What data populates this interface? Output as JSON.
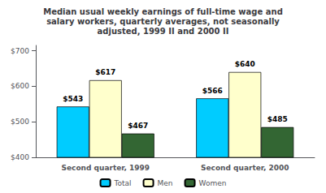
{
  "chart_data": {
    "type": "bar",
    "title": "Median usual weekly earnings of full-time wage and\nsalary workers, quarterly averages, not seasonally\nadjusted, 1999 II and 2000 II",
    "categories": [
      "Second quarter, 1999",
      "Second quarter, 2000"
    ],
    "series": [
      {
        "name": "Total",
        "color": "#00CCFF",
        "values": [
          543,
          566
        ],
        "value_labels": [
          "$543",
          "$566"
        ]
      },
      {
        "name": "Men",
        "color": "#FFFFCC",
        "values": [
          617,
          640
        ],
        "value_labels": [
          "$617",
          "$640"
        ]
      },
      {
        "name": "Women",
        "color": "#336633",
        "values": [
          467,
          485
        ],
        "value_labels": [
          "$467",
          "$485"
        ]
      }
    ],
    "ylim": [
      400,
      715
    ],
    "yticks": [
      {
        "value": 400,
        "label": "$400"
      },
      {
        "value": 500,
        "label": "$500"
      },
      {
        "value": 600,
        "label": "$600"
      },
      {
        "value": 700,
        "label": "$700"
      }
    ],
    "grid": false,
    "legend": "bottom",
    "data_labels": true
  }
}
